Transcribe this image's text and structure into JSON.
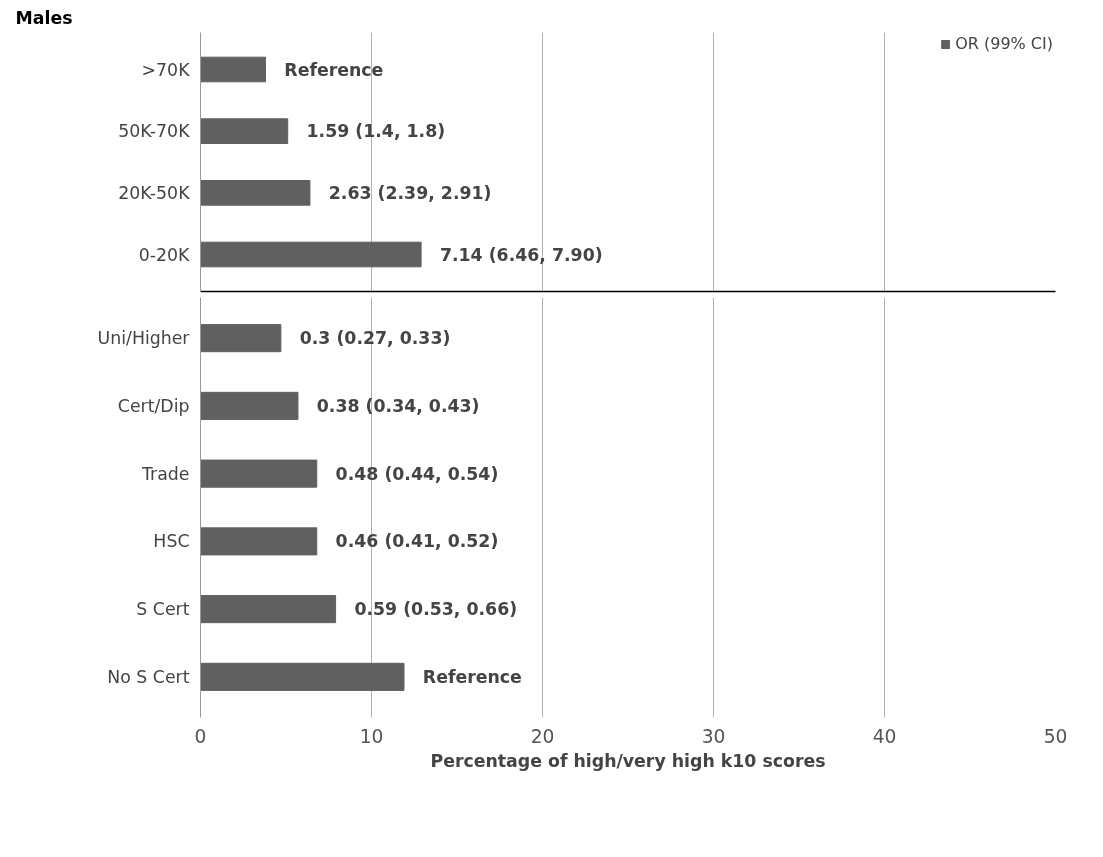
{
  "chart_data": [
    {
      "type": "bar",
      "orientation": "horizontal",
      "categories": [
        ">70K",
        "50K-70K",
        "20K-50K",
        "0-20K"
      ],
      "series": [
        {
          "name": "OR (99% CI)",
          "color": "#606060",
          "values": [
            3.8,
            5.1,
            6.4,
            12.9
          ]
        }
      ],
      "xlim": [
        0,
        50
      ],
      "xticks": [
        0,
        10,
        20,
        30,
        40,
        50
      ],
      "tick_labels": "y",
      "grid": "x",
      "legend": "top right",
      "annotations": [
        "Males",
        {
          "text": "Reference",
          "x": 3.8,
          "y": ">70K"
        },
        {
          "text": "1.59 (1.4, 1.8)",
          "x": 5.1,
          "y": "50K-70K"
        },
        {
          "text": "2.63 (2.39, 2.91)",
          "x": 6.4,
          "y": "20K-50K"
        },
        {
          "text": "7.14 (6.46, 7.90)",
          "x": 12.9,
          "y": "0-20K"
        }
      ]
    },
    {
      "type": "bar",
      "orientation": "horizontal",
      "xlabel": "Percentage of high/very high k10 scores",
      "categories": [
        "Uni/Higher",
        "Cert/Dip",
        "Trade",
        "HSC",
        "S Cert",
        "No S Cert"
      ],
      "series": [
        {
          "color": "#606060",
          "values": [
            4.7,
            5.7,
            6.8,
            6.8,
            7.9,
            11.9
          ]
        }
      ],
      "xlim": [
        0,
        50
      ],
      "xticks": [
        0,
        10,
        20,
        30,
        40,
        50
      ],
      "grid": "x",
      "annotations": [
        {
          "text": "0.3 (0.27, 0.33)",
          "x": 4.7,
          "y": "Uni/Higher"
        },
        {
          "text": "0.38 (0.34, 0.43)",
          "x": 5.7,
          "y": "Cert/Dip"
        },
        {
          "text": "0.48 (0.44, 0.54)",
          "x": 6.8,
          "y": "Trade"
        },
        {
          "text": "0.46 (0.41, 0.52)",
          "x": 6.8,
          "y": "HSC"
        },
        {
          "text": "0.59 (0.53, 0.66)",
          "x": 7.9,
          "y": "S Cert"
        },
        {
          "text": "Reference",
          "x": 11.9,
          "y": "No S Cert"
        }
      ]
    }
  ]
}
